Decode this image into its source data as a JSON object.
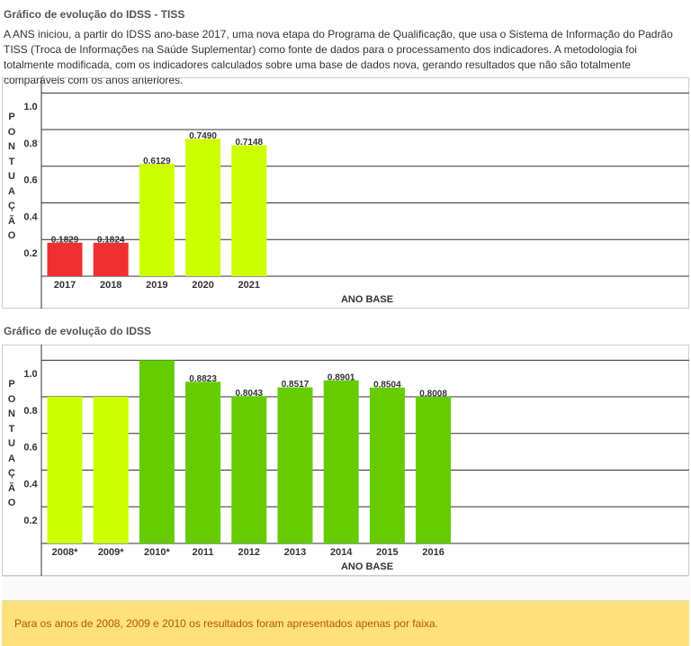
{
  "page": {
    "intro": "A ANS iniciou, a partir do IDSS ano-base 2017, uma nova etapa do Programa de Qualificação, que usa o Sistema de Informação do Padrão TISS (Troca de Informações na Saúde Suplementar) como fonte de dados para o processamento dos indicadores. A metodologia foi totalmente modificada, com os indicadores calculados sobre uma base de dados nova, gerando resultados que não são totalmente comparáveis com os anos anteriores.",
    "note": "Para os anos de 2008, 2009 e 2010 os resultados foram apresentados apenas por faixa."
  },
  "chart_data": [
    {
      "type": "bar",
      "title": "Gráfico de evolução do IDSS - TISS",
      "x_label": "ANO BASE",
      "y_label": "PONTUAÇÃO",
      "categories": [
        "2017",
        "2018",
        "2019",
        "2020",
        "2021"
      ],
      "values": [
        0.1829,
        0.1824,
        0.6129,
        0.749,
        0.7148
      ],
      "value_labels": [
        "0.1829",
        "0.1824",
        "0.6129",
        "0.7490",
        "0.7148"
      ],
      "colors": [
        "#f03030",
        "#f03030",
        "#ccff00",
        "#ccff00",
        "#ccff00"
      ],
      "ylim": [
        0,
        1.085
      ],
      "yticks": [
        0.2,
        0.4,
        0.6,
        0.8,
        {
          "value": 1,
          "label": "1.0"
        }
      ],
      "grid": true
    },
    {
      "type": "bar",
      "title": "Gráfico de evolução do IDSS",
      "x_label": "ANO BASE",
      "y_label": "PONTUAÇÃO",
      "categories": [
        "2008*",
        "2009*",
        "2010*",
        "2011",
        "2012",
        "2013",
        "2014",
        "2015",
        "2016"
      ],
      "values": [
        0.8,
        0.8,
        1,
        0.8823,
        0.8043,
        0.8517,
        0.8901,
        0.8504,
        0.8008
      ],
      "value_labels": [
        null,
        null,
        null,
        "0.8823",
        "0.8043",
        "0.8517",
        "0.8901",
        "0.8504",
        "0.8008"
      ],
      "colors": [
        "#ccff00",
        "#ccff00",
        "#66cc00",
        "#66cc00",
        "#66cc00",
        "#66cc00",
        "#66cc00",
        "#66cc00",
        "#66cc00"
      ],
      "ylim": [
        0,
        1.085
      ],
      "yticks": [
        0.2,
        0.4,
        0.6,
        0.8,
        {
          "value": 1,
          "label": "1.0"
        }
      ],
      "grid": true
    }
  ]
}
